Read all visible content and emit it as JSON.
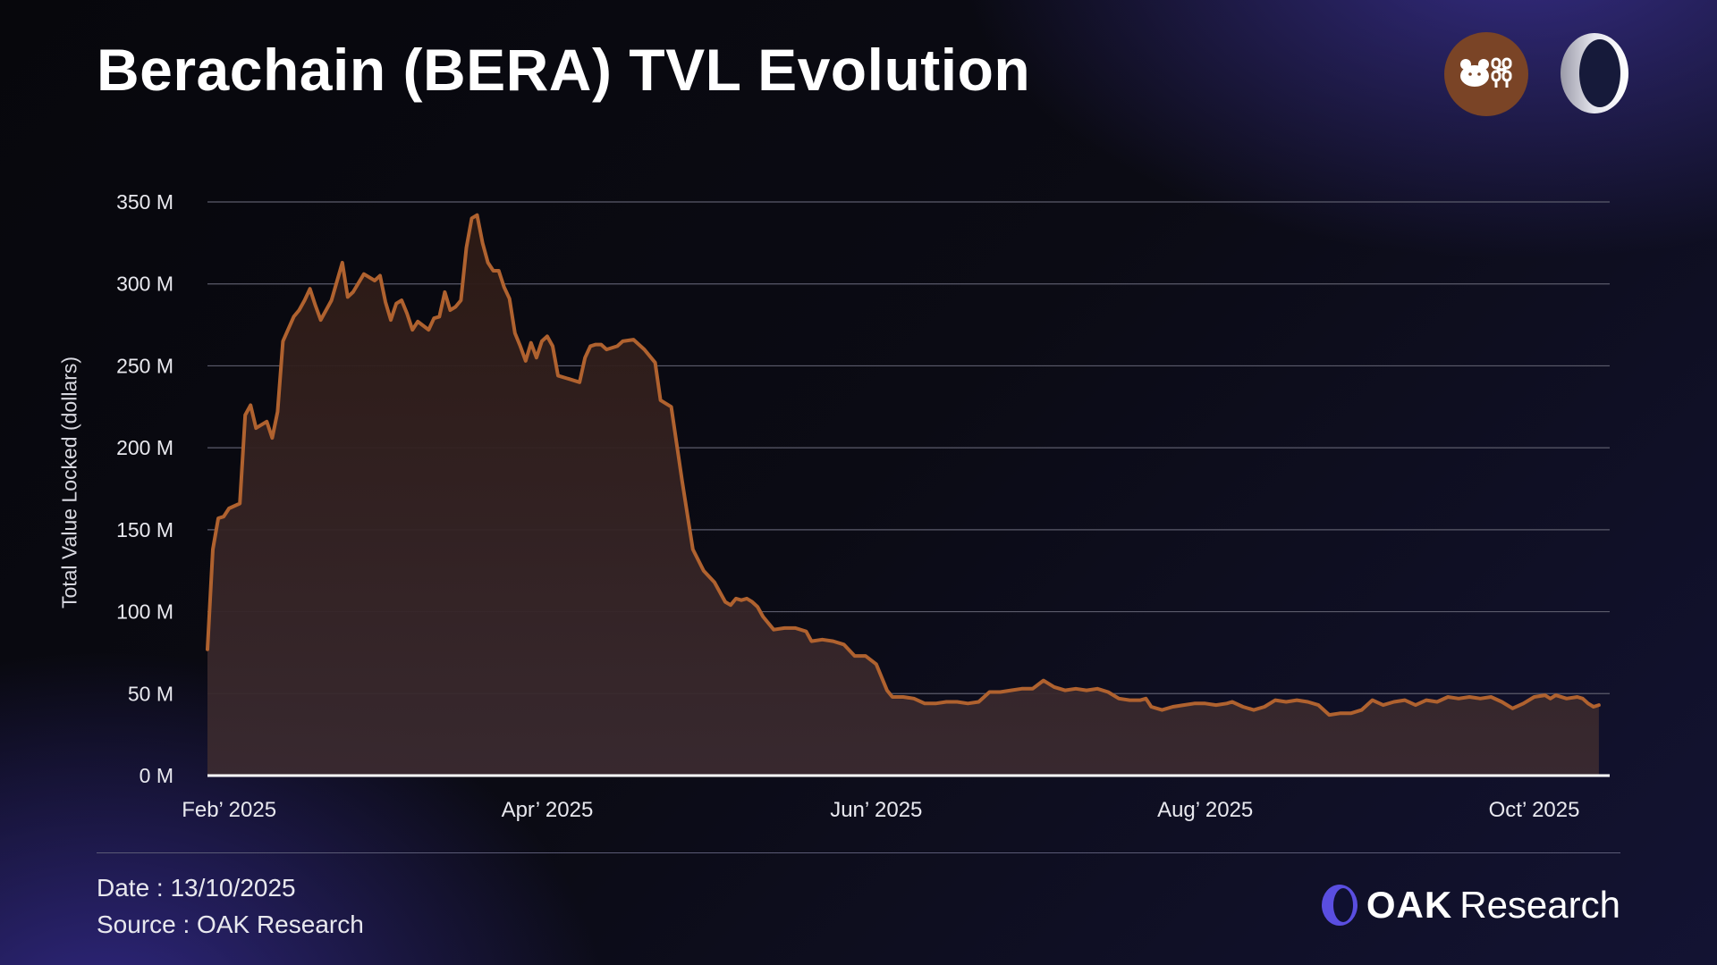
{
  "title": "Berachain (BERA) TVL Evolution",
  "logos": {
    "left": "bera-chain-logo",
    "right": "oak-logo"
  },
  "footer": {
    "date": "Date : 13/10/2025",
    "source": "Source : OAK Research",
    "brand_bold": "OAK",
    "brand_light": "Research"
  },
  "colors": {
    "line": "#b0622f",
    "fill": "#2f1c17",
    "grid": "#5b5b6b",
    "axis": "#ffffff"
  },
  "chart_data": {
    "type": "area",
    "title": "Berachain (BERA) TVL Evolution",
    "xlabel": "",
    "ylabel": "Total Value Locked (dollars)",
    "ylim": [
      0,
      350
    ],
    "yunit": "M USD",
    "yticks": [
      0,
      50,
      100,
      150,
      200,
      250,
      300,
      350
    ],
    "ytick_labels": [
      "0 M",
      "50 M",
      "100 M",
      "150 M",
      "200 M",
      "250 M",
      "300 M",
      "350 M"
    ],
    "xlim": [
      "2025-01-28",
      "2025-10-15"
    ],
    "xticks": [
      "2025-02-01",
      "2025-04-01",
      "2025-06-01",
      "2025-08-01",
      "2025-10-01"
    ],
    "xtick_labels": [
      "Feb’ 2025",
      "Apr’ 2025",
      "Jun’ 2025",
      "Aug’ 2025",
      "Oct’ 2025"
    ],
    "grid": true,
    "legend": "none",
    "series": [
      {
        "name": "TVL",
        "x": [
          "2025-01-28",
          "2025-01-29",
          "2025-01-30",
          "2025-01-31",
          "2025-02-01",
          "2025-02-03",
          "2025-02-04",
          "2025-02-05",
          "2025-02-06",
          "2025-02-08",
          "2025-02-09",
          "2025-02-10",
          "2025-02-11",
          "2025-02-13",
          "2025-02-14",
          "2025-02-15",
          "2025-02-16",
          "2025-02-17",
          "2025-02-18",
          "2025-02-20",
          "2025-02-22",
          "2025-02-23",
          "2025-02-24",
          "2025-02-26",
          "2025-02-28",
          "2025-03-01",
          "2025-03-02",
          "2025-03-03",
          "2025-03-04",
          "2025-03-05",
          "2025-03-06",
          "2025-03-07",
          "2025-03-08",
          "2025-03-10",
          "2025-03-11",
          "2025-03-12",
          "2025-03-13",
          "2025-03-14",
          "2025-03-15",
          "2025-03-16",
          "2025-03-17",
          "2025-03-18",
          "2025-03-19",
          "2025-03-20",
          "2025-03-21",
          "2025-03-22",
          "2025-03-23",
          "2025-03-24",
          "2025-03-25",
          "2025-03-26",
          "2025-03-27",
          "2025-03-28",
          "2025-03-29",
          "2025-03-30",
          "2025-03-31",
          "2025-04-01",
          "2025-04-02",
          "2025-04-03",
          "2025-04-05",
          "2025-04-07",
          "2025-04-08",
          "2025-04-09",
          "2025-04-10",
          "2025-04-11",
          "2025-04-12",
          "2025-04-14",
          "2025-04-15",
          "2025-04-17",
          "2025-04-19",
          "2025-04-21",
          "2025-04-22",
          "2025-04-24",
          "2025-04-26",
          "2025-04-28",
          "2025-04-30",
          "2025-05-02",
          "2025-05-04",
          "2025-05-05",
          "2025-05-06",
          "2025-05-07",
          "2025-05-08",
          "2025-05-09",
          "2025-05-10",
          "2025-05-11",
          "2025-05-13",
          "2025-05-15",
          "2025-05-17",
          "2025-05-19",
          "2025-05-20",
          "2025-05-22",
          "2025-05-24",
          "2025-05-26",
          "2025-05-28",
          "2025-05-30",
          "2025-06-01",
          "2025-06-03",
          "2025-06-04",
          "2025-06-06",
          "2025-06-08",
          "2025-06-10",
          "2025-06-12",
          "2025-06-14",
          "2025-06-16",
          "2025-06-18",
          "2025-06-20",
          "2025-06-22",
          "2025-06-24",
          "2025-06-26",
          "2025-06-28",
          "2025-06-30",
          "2025-07-02",
          "2025-07-04",
          "2025-07-06",
          "2025-07-08",
          "2025-07-10",
          "2025-07-12",
          "2025-07-14",
          "2025-07-16",
          "2025-07-18",
          "2025-07-20",
          "2025-07-21",
          "2025-07-22",
          "2025-07-24",
          "2025-07-26",
          "2025-07-28",
          "2025-07-30",
          "2025-08-01",
          "2025-08-03",
          "2025-08-05",
          "2025-08-06",
          "2025-08-08",
          "2025-08-10",
          "2025-08-12",
          "2025-08-14",
          "2025-08-16",
          "2025-08-18",
          "2025-08-20",
          "2025-08-22",
          "2025-08-24",
          "2025-08-26",
          "2025-08-28",
          "2025-08-30",
          "2025-09-01",
          "2025-09-03",
          "2025-09-05",
          "2025-09-07",
          "2025-09-09",
          "2025-09-11",
          "2025-09-13",
          "2025-09-15",
          "2025-09-17",
          "2025-09-19",
          "2025-09-21",
          "2025-09-23",
          "2025-09-25",
          "2025-09-27",
          "2025-09-29",
          "2025-10-01",
          "2025-10-03",
          "2025-10-04",
          "2025-10-05",
          "2025-10-07",
          "2025-10-09",
          "2025-10-10",
          "2025-10-11",
          "2025-10-12",
          "2025-10-13"
        ],
        "values": [
          77,
          138,
          157,
          158,
          163,
          166,
          220,
          226,
          212,
          216,
          206,
          222,
          265,
          280,
          284,
          290,
          297,
          287,
          278,
          290,
          313,
          292,
          295,
          306,
          302,
          305,
          289,
          278,
          288,
          290,
          282,
          272,
          277,
          272,
          279,
          280,
          295,
          284,
          286,
          290,
          322,
          340,
          342,
          325,
          313,
          308,
          308,
          298,
          291,
          270,
          262,
          253,
          264,
          255,
          265,
          268,
          262,
          244,
          242,
          240,
          255,
          262,
          263,
          263,
          260,
          262,
          265,
          266,
          260,
          252,
          229,
          225,
          180,
          138,
          125,
          118,
          106,
          104,
          108,
          107,
          108,
          106,
          103,
          97,
          89,
          90,
          90,
          88,
          82,
          83,
          82,
          80,
          73,
          73,
          68,
          52,
          48,
          48,
          47,
          44,
          44,
          45,
          45,
          44,
          45,
          51,
          51,
          52,
          53,
          53,
          58,
          54,
          52,
          53,
          52,
          53,
          51,
          47,
          46,
          46,
          47,
          42,
          40,
          42,
          43,
          44,
          44,
          43,
          44,
          45,
          42,
          40,
          42,
          46,
          45,
          46,
          45,
          43,
          37,
          38,
          38,
          40,
          46,
          43,
          45,
          46,
          43,
          46,
          45,
          48,
          47,
          48,
          47,
          48,
          45,
          41,
          44,
          48,
          49,
          47,
          49,
          47,
          48,
          47,
          44,
          42,
          43
        ]
      }
    ]
  }
}
